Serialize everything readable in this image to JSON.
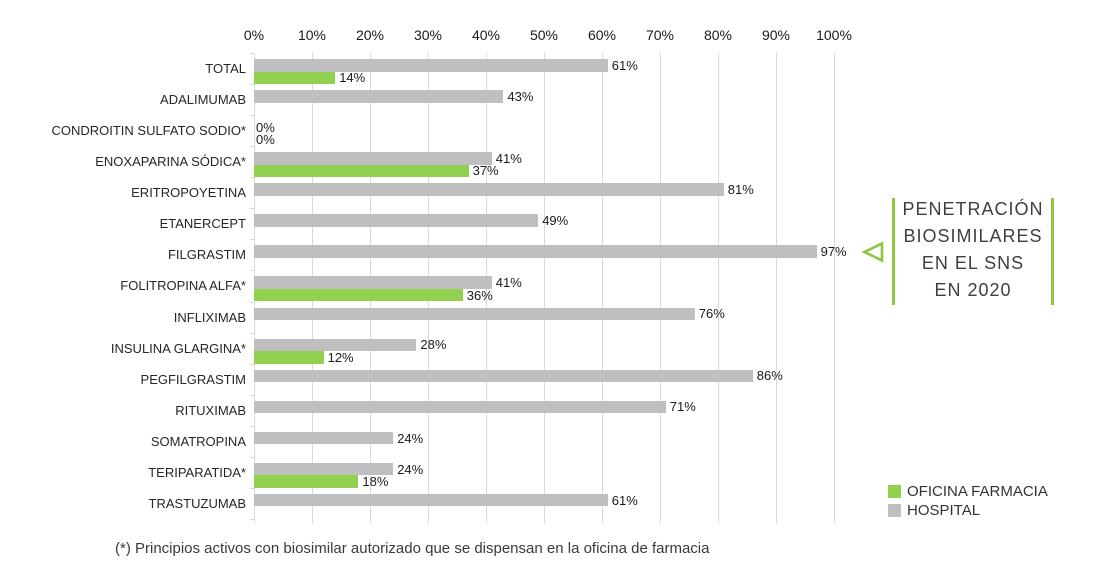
{
  "figure": {
    "background": "#ffffff"
  },
  "footnote": "(*) Principios activos con biosimilar autorizado que se dispensan en la oficina de farmacia",
  "annotation": {
    "lines": [
      "PENETRACIÓN",
      "BIOSIMILARES",
      "EN EL SNS",
      "EN 2020"
    ],
    "accent_color": "#8dc63f",
    "arrow_icon": "triangle-left-icon"
  },
  "legend": {
    "items": [
      {
        "label": "OFICINA FARMACIA",
        "color": "#92d050"
      },
      {
        "label": "HOSPITAL",
        "color": "#bfbfbf"
      }
    ]
  },
  "chart_data": {
    "type": "bar",
    "orientation": "horizontal",
    "title": "PENETRACIÓN BIOSIMILARES EN EL SNS EN 2020",
    "xlabel": "",
    "ylabel": "",
    "xlim": [
      0,
      100
    ],
    "x_ticks": [
      "0%",
      "10%",
      "20%",
      "30%",
      "40%",
      "50%",
      "60%",
      "70%",
      "80%",
      "90%",
      "100%"
    ],
    "grid": "vertical",
    "gridline_color": "#d9d9d9",
    "legend_position": "bottom-right",
    "categories": [
      "TOTAL",
      "ADALIMUMAB",
      "CONDROITIN SULFATO SODIO*",
      "ENOXAPARINA SÓDICA*",
      "ERITROPOYETINA",
      "ETANERCEPT",
      "FILGRASTIM",
      "FOLITROPINA ALFA*",
      "INFLIXIMAB",
      "INSULINA GLARGINA*",
      "PEGFILGRASTIM",
      "RITUXIMAB",
      "SOMATROPINA",
      "TERIPARATIDA*",
      "TRASTUZUMAB"
    ],
    "series": [
      {
        "name": "HOSPITAL",
        "color": "#bfbfbf",
        "values": [
          61,
          43,
          0,
          41,
          81,
          49,
          97,
          41,
          76,
          28,
          86,
          71,
          24,
          24,
          61
        ],
        "labels": [
          "61%",
          "43%",
          "0%",
          "41%",
          "81%",
          "49%",
          "97%",
          "41%",
          "76%",
          "28%",
          "86%",
          "71%",
          "24%",
          "24%",
          "61%"
        ]
      },
      {
        "name": "OFICINA FARMACIA",
        "color": "#92d050",
        "values": [
          14,
          null,
          0,
          37,
          null,
          null,
          null,
          36,
          null,
          12,
          null,
          null,
          null,
          18,
          null
        ],
        "labels": [
          "14%",
          null,
          "0%",
          "37%",
          null,
          null,
          null,
          "36%",
          null,
          "12%",
          null,
          null,
          null,
          "18%",
          null
        ]
      }
    ],
    "annotated_category": "FILGRASTIM"
  }
}
